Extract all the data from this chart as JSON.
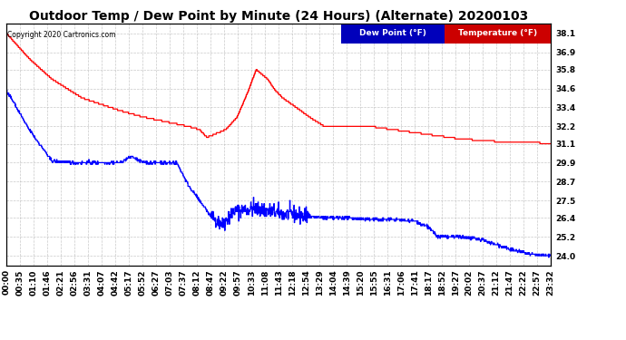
{
  "title": "Outdoor Temp / Dew Point by Minute (24 Hours) (Alternate) 20200103",
  "copyright": "Copyright 2020 Cartronics.com",
  "legend_labels": [
    "Dew Point (°F)",
    "Temperature (°F)"
  ],
  "legend_bg_colors": [
    "#0000cc",
    "#cc0000"
  ],
  "yticks": [
    24.0,
    25.2,
    26.4,
    27.5,
    28.7,
    29.9,
    31.1,
    32.2,
    33.4,
    34.6,
    35.8,
    36.9,
    38.1
  ],
  "ylim": [
    23.4,
    38.7
  ],
  "xtick_labels": [
    "00:00",
    "00:35",
    "01:10",
    "01:46",
    "02:21",
    "02:56",
    "03:31",
    "04:07",
    "04:42",
    "05:17",
    "05:52",
    "06:27",
    "07:03",
    "07:37",
    "08:12",
    "08:47",
    "09:22",
    "09:57",
    "10:33",
    "11:08",
    "11:43",
    "12:18",
    "12:54",
    "13:29",
    "14:04",
    "14:39",
    "15:20",
    "15:55",
    "16:31",
    "17:06",
    "17:41",
    "18:17",
    "18:52",
    "19:27",
    "20:02",
    "20:37",
    "21:12",
    "21:47",
    "22:22",
    "22:57",
    "23:32"
  ],
  "background_color": "#ffffff",
  "grid_color": "#bbbbbb",
  "title_fontsize": 10,
  "tick_fontsize": 6.5
}
